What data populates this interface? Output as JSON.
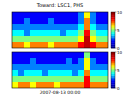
{
  "chart_data": [
    {
      "type": "heatmap",
      "title": "Toward: LSC1, PHS",
      "tick_labels": false,
      "cells": [
        [
          2,
          2,
          2,
          2,
          2,
          2,
          2,
          2,
          2,
          2,
          2,
          3,
          6,
          3,
          2,
          2
        ],
        [
          2,
          2,
          3,
          2,
          2,
          2,
          3,
          2,
          2,
          2,
          2,
          3,
          7,
          3,
          2,
          2
        ],
        [
          3,
          3,
          3,
          3,
          3,
          3,
          3,
          3,
          3,
          3,
          3,
          4,
          7,
          4,
          3,
          3
        ],
        [
          4,
          4,
          3,
          4,
          4,
          4,
          4,
          4,
          3,
          4,
          4,
          5,
          8,
          5,
          4,
          4
        ],
        [
          5,
          5,
          5,
          5,
          5,
          5,
          5,
          5,
          5,
          5,
          5,
          6,
          9,
          6,
          5,
          5
        ],
        [
          7,
          7,
          6,
          7,
          7,
          7,
          6,
          7,
          7,
          7,
          7,
          8,
          9,
          8,
          7,
          7
        ]
      ],
      "colorbar_range": [
        0,
        10
      ],
      "colorbar_ticks": [
        0,
        5,
        10
      ]
    },
    {
      "type": "heatmap",
      "xlabel": "2007-08-13 00:00",
      "tick_labels": false,
      "cells": [
        [
          2,
          2,
          2,
          2,
          2,
          2,
          2,
          2,
          2,
          2,
          2,
          2,
          5,
          2,
          2,
          2
        ],
        [
          2,
          2,
          2,
          3,
          2,
          2,
          2,
          2,
          2,
          3,
          2,
          3,
          6,
          3,
          2,
          2
        ],
        [
          3,
          3,
          3,
          3,
          3,
          3,
          3,
          3,
          3,
          3,
          3,
          3,
          6,
          3,
          3,
          3
        ],
        [
          4,
          3,
          4,
          4,
          4,
          3,
          4,
          4,
          4,
          4,
          3,
          4,
          7,
          4,
          4,
          4
        ],
        [
          5,
          5,
          5,
          5,
          5,
          5,
          5,
          5,
          5,
          5,
          5,
          5,
          8,
          5,
          5,
          5
        ],
        [
          6,
          7,
          7,
          6,
          7,
          7,
          7,
          6,
          7,
          7,
          7,
          7,
          8,
          7,
          7,
          7
        ]
      ],
      "colorbar_range": [
        0,
        10
      ],
      "colorbar_ticks": [
        0,
        5,
        10
      ]
    }
  ]
}
